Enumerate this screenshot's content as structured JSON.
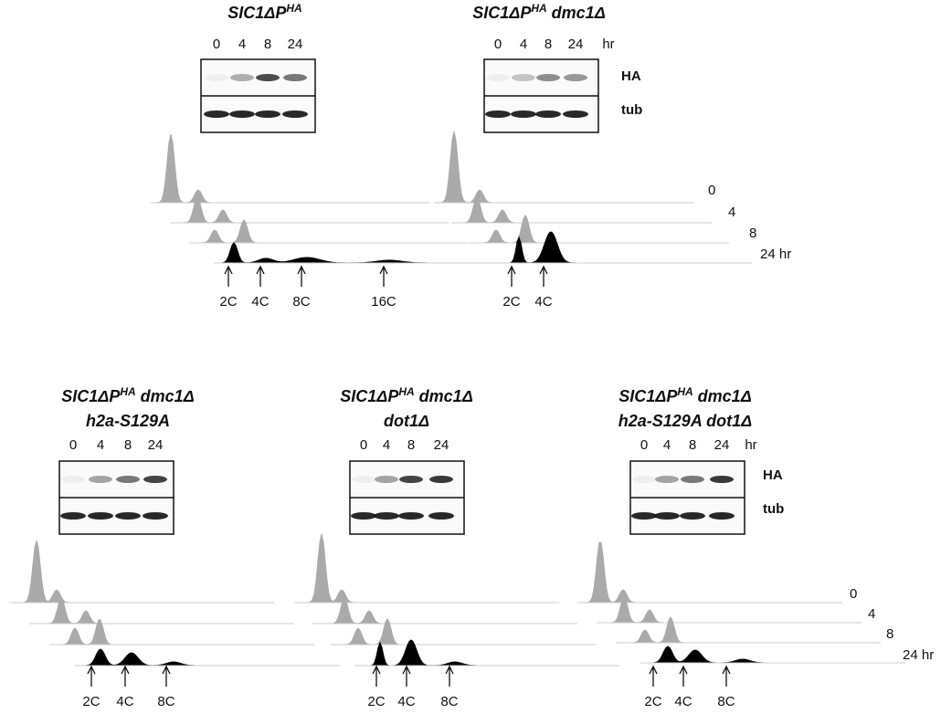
{
  "panels": [
    {
      "title_lines": [
        {
          "main": "SIC1ΔP",
          "sup": "HA"
        }
      ],
      "lanes": [
        "0",
        "4",
        "8",
        "24"
      ],
      "peaks": [
        "2C",
        "4C",
        "8C",
        "16C"
      ]
    },
    {
      "title_lines": [
        {
          "main": "SIC1ΔP",
          "sup": "HA",
          "rest": " dmc1Δ"
        }
      ],
      "lanes": [
        "0",
        "4",
        "8",
        "24"
      ],
      "lane_unit": "hr",
      "blot_labels": [
        "HA",
        "tub"
      ],
      "row_labels": [
        "0",
        "4",
        "8",
        "24 hr"
      ],
      "peaks": [
        "2C",
        "4C"
      ]
    },
    {
      "title_lines": [
        {
          "main": "SIC1ΔP",
          "sup": "HA",
          "rest": " dmc1Δ"
        },
        {
          "main": "h2a-S129A"
        }
      ],
      "lanes": [
        "0",
        "4",
        "8",
        "24"
      ],
      "peaks": [
        "2C",
        "4C",
        "8C"
      ]
    },
    {
      "title_lines": [
        {
          "main": "SIC1ΔP",
          "sup": "HA",
          "rest": " dmc1Δ"
        },
        {
          "main": "dot1Δ"
        }
      ],
      "lanes": [
        "0",
        "4",
        "8",
        "24"
      ],
      "peaks": [
        "2C",
        "4C",
        "8C"
      ]
    },
    {
      "title_lines": [
        {
          "main": "SIC1ΔP",
          "sup": "HA",
          "rest": " dmc1Δ"
        },
        {
          "main": "h2a-S129A dot1Δ"
        }
      ],
      "lanes": [
        "0",
        "4",
        "8",
        "24"
      ],
      "lane_unit": "hr",
      "blot_labels": [
        "HA",
        "tub"
      ],
      "row_labels": [
        "0",
        "4",
        "8",
        "24 hr"
      ],
      "peaks": [
        "2C",
        "4C",
        "8C"
      ]
    }
  ]
}
